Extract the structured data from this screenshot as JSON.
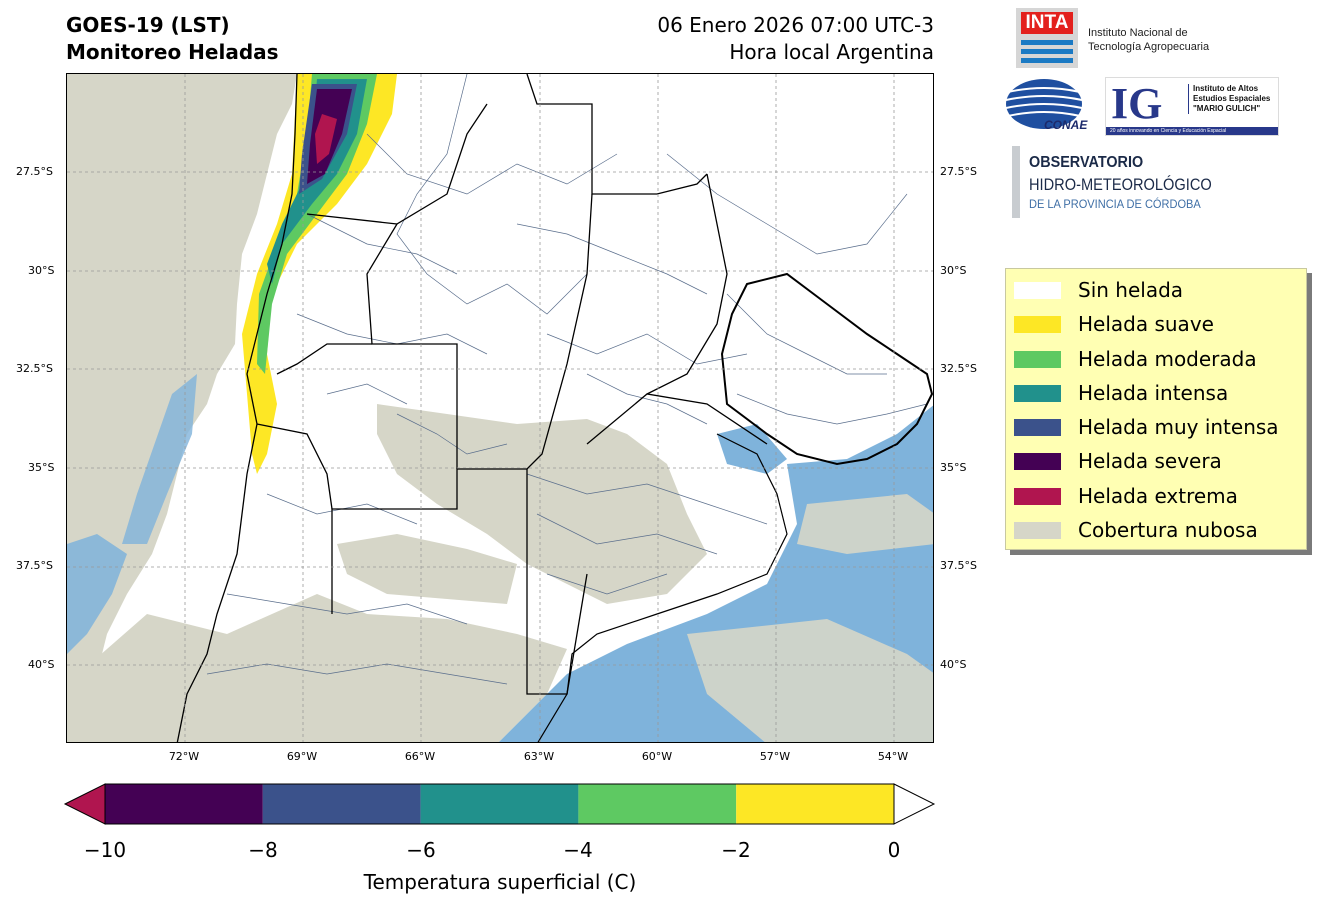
{
  "header": {
    "title_line1": "GOES-19 (LST)",
    "title_line2": "Monitoreo Heladas",
    "date": "06 Enero 2026 07:00 UTC-3",
    "subtitle": "Hora local Argentina"
  },
  "map": {
    "lat_labels": [
      "27.5°S",
      "30°S",
      "32.5°S",
      "35°S",
      "37.5°S",
      "40°S"
    ],
    "lon_labels": [
      "72°W",
      "69°W",
      "66°W",
      "63°W",
      "60°W",
      "57°W",
      "54°W"
    ],
    "colors": {
      "land": "#ffffff",
      "cloud": "#d6d6c8",
      "water": "#7fb3db",
      "border": "#000000",
      "department": "#5a6e8c",
      "grid": "#999999"
    }
  },
  "logos": {
    "inta": "INTA",
    "inta_name_line1": "Instituto Nacional de",
    "inta_name_line2": "Tecnología Agropecuaria",
    "conae": "CONAE",
    "ig": "IG",
    "ig_line1": "Instituto de Altos",
    "ig_line2": "Estudios Espaciales",
    "ig_line3": "\"MARIO GULICH\"",
    "ig_strip": "20 años innovando en Ciencia y Educación Espacial",
    "obs_line1": "OBSERVATORIO",
    "obs_line2": "HIDRO-METEOROLÓGICO",
    "obs_line3": "DE LA PROVINCIA DE CÓRDOBA"
  },
  "legend": {
    "items": [
      {
        "label": "Sin helada",
        "color": "#ffffff"
      },
      {
        "label": "Helada suave",
        "color": "#fde725"
      },
      {
        "label": "Helada moderada",
        "color": "#5ec962"
      },
      {
        "label": "Helada intensa",
        "color": "#21918c"
      },
      {
        "label": "Helada muy intensa",
        "color": "#3b528b"
      },
      {
        "label": "Helada severa",
        "color": "#440154"
      },
      {
        "label": "Helada extrema",
        "color": "#b0154f"
      },
      {
        "label": "Cobertura nubosa",
        "color": "#d6d6c8"
      }
    ]
  },
  "colorbar": {
    "ticks": [
      "−10",
      "−8",
      "−6",
      "−4",
      "−2",
      "0"
    ],
    "label": "Temperatura superficial (C)",
    "bins": [
      {
        "from": -10,
        "to": -8,
        "color": "#440154"
      },
      {
        "from": -8,
        "to": -6,
        "color": "#3b528b"
      },
      {
        "from": -6,
        "to": -4,
        "color": "#21918c"
      },
      {
        "from": -4,
        "to": -2,
        "color": "#5ec962"
      },
      {
        "from": -2,
        "to": 0,
        "color": "#fde725"
      }
    ],
    "under_color": "#b0154f",
    "over_color": "#ffffff"
  }
}
